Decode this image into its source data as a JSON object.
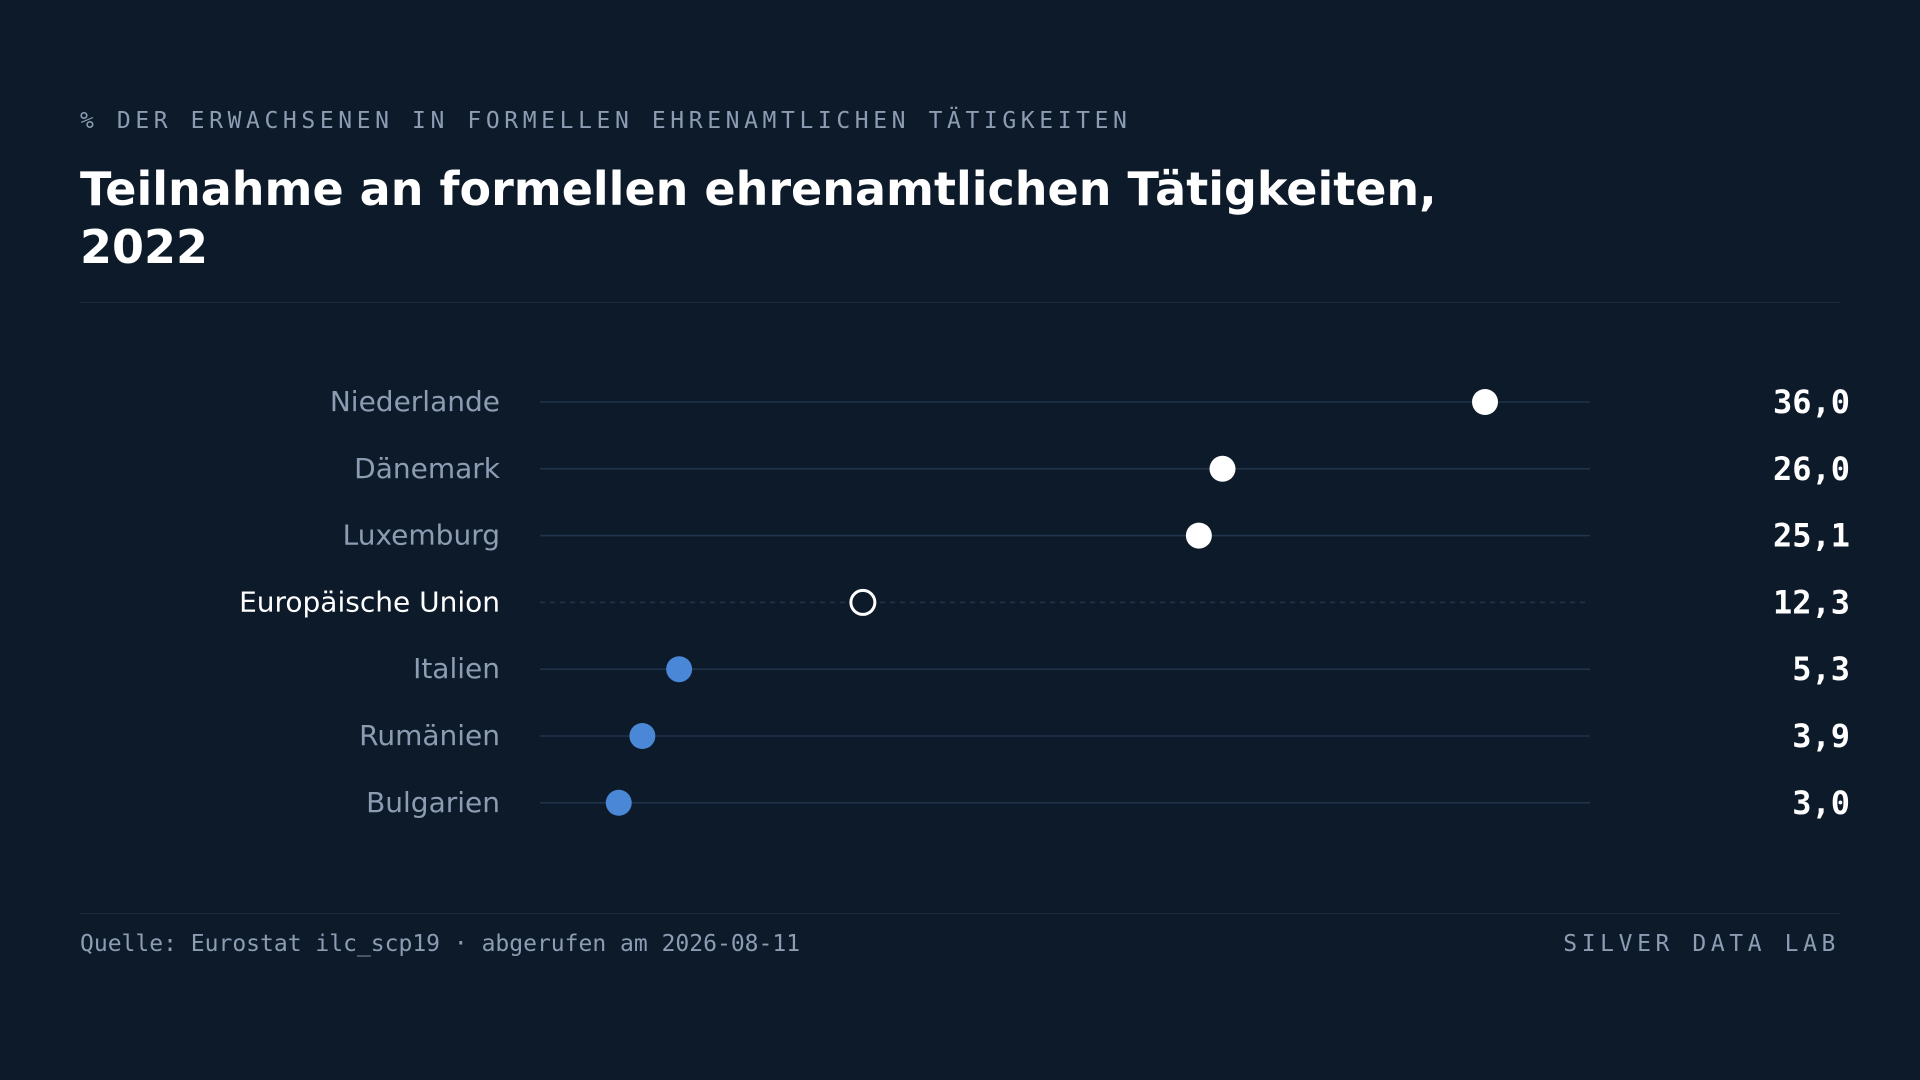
{
  "header": {
    "kicker": "% DER ERWACHSENEN IN FORMELLEN EHRENAMTLICHEN TÄTIGKEITEN",
    "title": "Teilnahme an formellen ehrenamtlichen Tätigkeiten, 2022"
  },
  "footer": {
    "source": "Quelle: Eurostat ilc_scp19 · abgerufen am 2026-08-11",
    "brand": "SILVER DATA LAB"
  },
  "colors": {
    "background": "#0d1a2a",
    "high": "#ffffff",
    "low": "#4a87d6",
    "reference": "#ffffff",
    "track": "#1f3349",
    "label": "#8c9db3",
    "reference_label": "#ffffff",
    "value": "#ffffff"
  },
  "chart_data": {
    "type": "dot",
    "title": "Teilnahme an formellen ehrenamtlichen Tätigkeiten, 2022",
    "unit": "% der Erwachsenen in formellen ehrenamtlichen Tätigkeiten",
    "xlim": [
      0,
      40
    ],
    "grid": false,
    "categories": [
      "Niederlande",
      "Dänemark",
      "Luxemburg",
      "Europäische Union",
      "Italien",
      "Rumänien",
      "Bulgarien"
    ],
    "values": [
      36.0,
      26.0,
      25.1,
      12.3,
      5.3,
      3.9,
      3.0
    ],
    "value_labels": [
      "36,0",
      "26,0",
      "25,1",
      "12,3",
      "5,3",
      "3,9",
      "3,0"
    ],
    "groups": [
      "high",
      "high",
      "high",
      "reference",
      "low",
      "low",
      "low"
    ]
  }
}
